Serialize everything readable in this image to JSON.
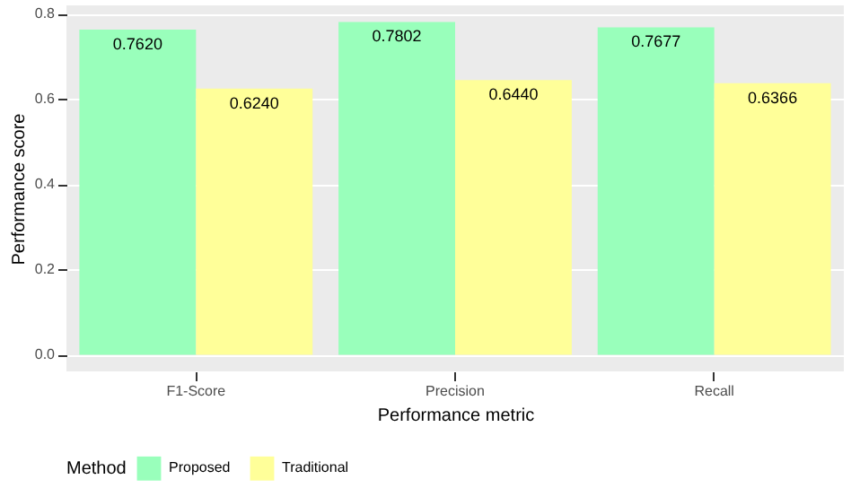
{
  "chart_data": {
    "type": "bar",
    "xlabel": "Performance metric",
    "ylabel": "Performance score",
    "legend_title": "Method",
    "categories": [
      "F1-Score",
      "Precision",
      "Recall"
    ],
    "series": [
      {
        "name": "Proposed",
        "color": "#99ffbb",
        "values": [
          0.762,
          0.7802,
          0.7677
        ],
        "value_labels": [
          "0.7620",
          "0.7802",
          "0.7677"
        ]
      },
      {
        "name": "Traditional",
        "color": "#ffff99",
        "values": [
          0.624,
          0.644,
          0.6366
        ],
        "value_labels": [
          "0.6240",
          "0.6440",
          "0.6366"
        ]
      }
    ],
    "ylim": [
      -0.039,
      0.819
    ],
    "yticks": [
      {
        "value": 0,
        "label": "0.0"
      },
      0.2,
      0.4,
      0.6,
      0.8
    ],
    "grid": "y",
    "legend": "bottom"
  }
}
